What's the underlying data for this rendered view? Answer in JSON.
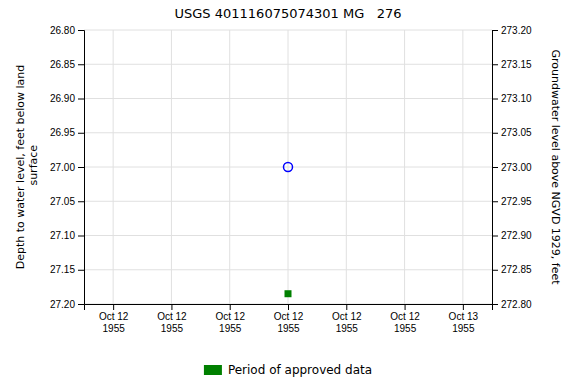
{
  "chart_data": {
    "type": "scatter",
    "title": "USGS 401116075074301 MG   276",
    "y_label": "Depth to water level, feet below land\n surface",
    "y2_label": "Groundwater level above NGVD 1929, feet",
    "categories": [
      "Oct 12\n1955",
      "Oct 12\n1955",
      "Oct 12\n1955",
      "Oct 12\n1955",
      "Oct 12\n1955",
      "Oct 12\n1955",
      "Oct 13\n1955"
    ],
    "series": [
      {
        "color": "blue",
        "marker": "open-circle",
        "values": [
          null,
          null,
          null,
          27.0,
          null,
          null,
          null
        ]
      },
      {
        "name": "Period of approved data",
        "color": "#008000",
        "marker": "square",
        "values": [
          null,
          null,
          null,
          27.185,
          null,
          null,
          null
        ]
      }
    ],
    "ylim": [
      27.2,
      26.8
    ],
    "yticks": [
      {
        "value": 26.8,
        "label": "26.80"
      },
      26.85,
      {
        "value": 26.9,
        "label": "26.90"
      },
      26.95,
      {
        "value": 27.0,
        "label": "27.00"
      },
      27.05,
      {
        "value": 27.1,
        "label": "27.10"
      },
      27.15,
      {
        "value": 27.2,
        "label": "27.20"
      }
    ],
    "y2lim": [
      272.8,
      273.2
    ],
    "y2ticks": [
      {
        "value": 272.8,
        "label": "272.80"
      },
      272.85,
      {
        "value": 272.9,
        "label": "272.90"
      },
      272.95,
      {
        "value": 273.0,
        "label": "273.00"
      },
      273.05,
      {
        "value": 273.1,
        "label": "273.10"
      },
      273.15,
      {
        "value": 273.2,
        "label": "273.20"
      }
    ],
    "grid": true,
    "legend": "bottom"
  }
}
